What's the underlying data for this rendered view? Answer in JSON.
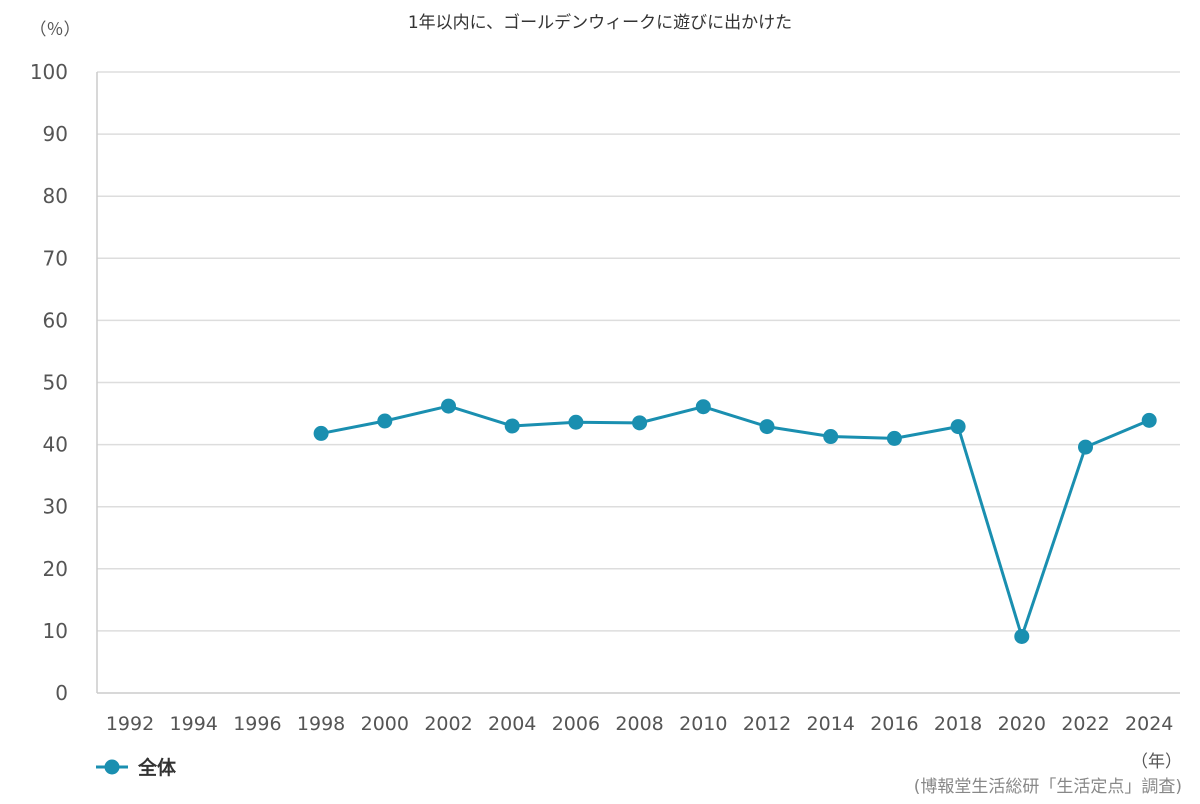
{
  "chart_data": {
    "type": "line",
    "title": "1年以内に、ゴールデンウィークに遊びに出かけた",
    "ylabel": "（％）",
    "xlabel": "（年）",
    "source": "(博報堂生活総研「生活定点」調査)",
    "ylim": [
      0,
      100
    ],
    "yticks": [
      0,
      10,
      20,
      30,
      40,
      50,
      60,
      70,
      80,
      90,
      100
    ],
    "grid": true,
    "legend_position": "bottom-left",
    "categories": [
      "1992",
      "1994",
      "1996",
      "1998",
      "2000",
      "2002",
      "2004",
      "2006",
      "2008",
      "2010",
      "2012",
      "2014",
      "2016",
      "2018",
      "2020",
      "2022",
      "2024"
    ],
    "series": [
      {
        "name": "全体",
        "color": "#1a8fb0",
        "values": [
          null,
          null,
          null,
          41.8,
          43.8,
          46.2,
          43.0,
          43.6,
          43.5,
          46.1,
          42.9,
          41.3,
          41.0,
          42.9,
          9.1,
          39.6,
          43.9
        ]
      }
    ]
  }
}
